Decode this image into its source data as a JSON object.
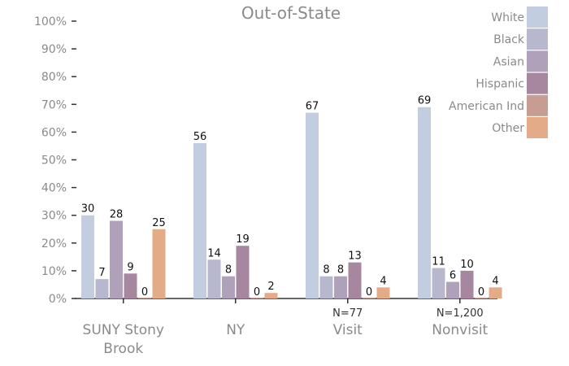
{
  "chart_data": {
    "type": "bar",
    "title": "Out-of-State",
    "categories": [
      "SUNY Stony Brook",
      "NY",
      "Visit",
      "Nonvisit"
    ],
    "category_lines": [
      [
        "SUNY Stony",
        "Brook"
      ],
      [
        "NY"
      ],
      [
        "Visit"
      ],
      [
        "Nonvisit"
      ]
    ],
    "n_labels": [
      "",
      "",
      "N=77",
      "N=1,200"
    ],
    "ylim": [
      0,
      100
    ],
    "yticks": [
      0,
      10,
      20,
      30,
      40,
      50,
      60,
      70,
      80,
      90,
      100
    ],
    "ytick_labels": [
      "0%",
      "10%",
      "20%",
      "30%",
      "40%",
      "50%",
      "60%",
      "70%",
      "80%",
      "90%",
      "100%"
    ],
    "legend_position": "top-right",
    "series": [
      {
        "name": "White",
        "color": "#c2cde0",
        "values": [
          30,
          56,
          67,
          69
        ],
        "labels": [
          "30",
          "56",
          "67",
          "69"
        ]
      },
      {
        "name": "Black",
        "color": "#b7b8cd",
        "values": [
          7,
          14,
          8,
          11
        ],
        "labels": [
          "7",
          "14",
          "8",
          "11"
        ]
      },
      {
        "name": "Asian",
        "color": "#b0a1ba",
        "values": [
          28,
          8,
          8,
          6
        ],
        "labels": [
          "28",
          "8",
          "8",
          "6"
        ]
      },
      {
        "name": "Hispanic",
        "color": "#a7879f",
        "values": [
          9,
          19,
          13,
          10
        ],
        "labels": [
          "9",
          "19",
          "13",
          "10"
        ]
      },
      {
        "name": "American Ind",
        "color": "#c69c93",
        "values": [
          0,
          0,
          0,
          0
        ],
        "labels": [
          "0",
          "0",
          "0",
          "0"
        ]
      },
      {
        "name": "Other",
        "color": "#e3ab88",
        "values": [
          25,
          2,
          4,
          4
        ],
        "labels": [
          "25",
          "2",
          "4",
          "4"
        ]
      }
    ]
  }
}
